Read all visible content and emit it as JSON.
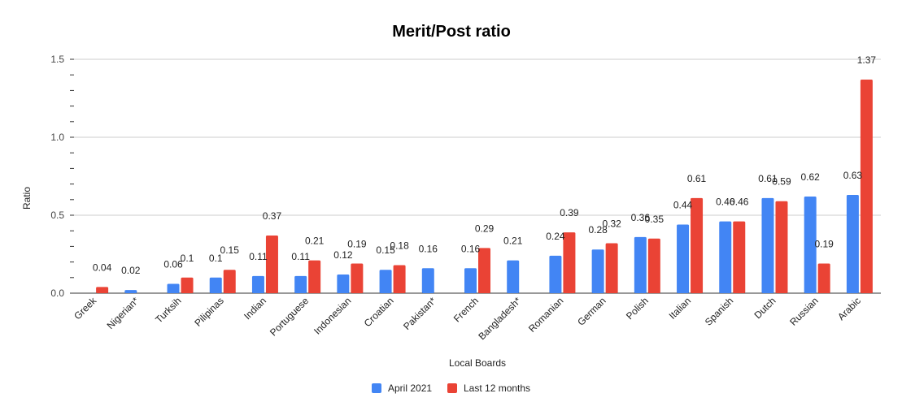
{
  "chart_data": {
    "type": "bar",
    "title": "Merit/Post ratio",
    "xlabel": "Local Boards",
    "ylabel": "Ratio",
    "ylim": [
      0,
      1.5
    ],
    "yticks": [
      "0.0",
      "0.5",
      "1.0",
      "1.5"
    ],
    "grid": true,
    "legend_position": "bottom",
    "categories": [
      "Greek",
      "Nigerian*",
      "Turksih",
      "Pilipinas",
      "Indian",
      "Portuguese",
      "Indonesian",
      "Croatian",
      "Pakistan*",
      "French",
      "Bangladesh*",
      "Romanian",
      "German",
      "Polish",
      "Italian",
      "Spanish",
      "Dutch",
      "Russian",
      "Arabic"
    ],
    "series": [
      {
        "name": "April 2021",
        "color": "#4285f4",
        "values": [
          null,
          0.02,
          0.06,
          0.1,
          0.11,
          0.11,
          0.12,
          0.15,
          0.16,
          0.16,
          0.21,
          0.24,
          0.28,
          0.36,
          0.44,
          0.46,
          0.61,
          0.62,
          0.63
        ],
        "labels": [
          "",
          "0.02",
          "0.06",
          "0.1",
          "0.11",
          "0.11",
          "0.12",
          "0.15",
          "0.16",
          "0.16",
          "0.21",
          "0.24",
          "0.28",
          "0.36",
          "0.44",
          "0.46",
          "0.61",
          "0.62",
          "0.63"
        ]
      },
      {
        "name": "Last 12 months",
        "color": "#ea4335",
        "values": [
          0.04,
          null,
          0.1,
          0.15,
          0.37,
          0.21,
          0.19,
          0.18,
          null,
          0.29,
          null,
          0.39,
          0.32,
          0.35,
          0.61,
          0.46,
          0.59,
          0.19,
          1.37
        ],
        "labels": [
          "0.04",
          "",
          "0.1",
          "0.15",
          "0.37",
          "0.21",
          "0.19",
          "0.18",
          "",
          "0.29",
          "",
          "0.39",
          "0.32",
          "0.35",
          "0.61",
          "0.46",
          "0.59",
          "0.19",
          "1.37"
        ]
      }
    ]
  }
}
